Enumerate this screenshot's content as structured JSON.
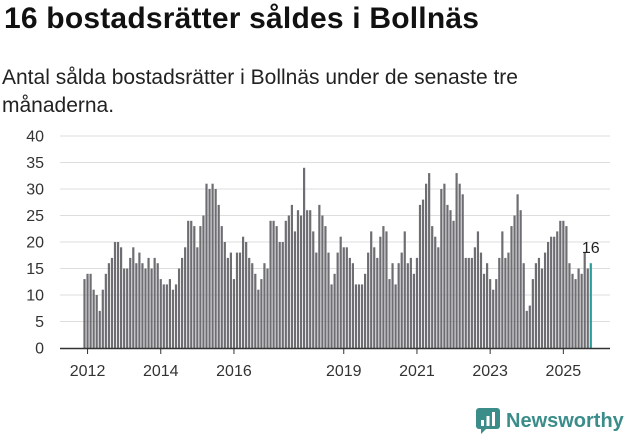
{
  "title": "16 bostadsrätter såldes i Bollnäs",
  "subtitle": "Antal sålda bostadsrätter i Bollnäs under de senaste tre månaderna.",
  "brand": {
    "name": "Newsworthy",
    "icon": "newsworthy-chart-icon"
  },
  "colors": {
    "bar": "#6e6d72",
    "highlight": "#2a9d99",
    "grid": "#dddddd",
    "axis": "#333333",
    "brand": "#3b8d8a"
  },
  "chart_data": {
    "type": "bar",
    "title": "16 bostadsrätter såldes i Bollnäs",
    "xlabel": "",
    "ylabel": "",
    "ylim": [
      0,
      40
    ],
    "yticks": [
      "0",
      "5",
      "10",
      "15",
      "20",
      "25",
      "30",
      "35",
      "40"
    ],
    "grid": true,
    "start": "2011-12",
    "xticks": [
      {
        "label": "2012",
        "index": 1
      },
      {
        "label": "2014",
        "index": 25
      },
      {
        "label": "2016",
        "index": 49
      },
      {
        "label": "2019",
        "index": 85
      },
      {
        "label": "2021",
        "index": 109
      },
      {
        "label": "2023",
        "index": 133
      },
      {
        "label": "2025",
        "index": 157
      }
    ],
    "values": [
      13,
      14,
      14,
      11,
      10,
      7,
      11,
      14,
      16,
      17,
      20,
      20,
      19,
      15,
      15,
      17,
      19,
      16,
      18,
      16,
      15,
      17,
      15,
      17,
      16,
      13,
      12,
      12,
      13,
      11,
      12,
      15,
      17,
      19,
      24,
      24,
      23,
      19,
      23,
      25,
      31,
      30,
      31,
      30,
      27,
      23,
      20,
      17,
      18,
      13,
      18,
      18,
      21,
      20,
      17,
      16,
      14,
      11,
      13,
      16,
      15,
      24,
      24,
      23,
      20,
      20,
      24,
      25,
      27,
      22,
      26,
      25,
      34,
      26,
      26,
      22,
      18,
      27,
      25,
      23,
      18,
      12,
      14,
      18,
      21,
      19,
      19,
      17,
      16,
      12,
      12,
      12,
      14,
      18,
      22,
      19,
      17,
      21,
      23,
      22,
      13,
      16,
      12,
      16,
      18,
      22,
      16,
      17,
      14,
      17,
      27,
      28,
      31,
      33,
      23,
      21,
      19,
      30,
      31,
      27,
      26,
      24,
      33,
      31,
      29,
      17,
      17,
      17,
      19,
      22,
      18,
      14,
      16,
      13,
      11,
      13,
      17,
      22,
      17,
      18,
      23,
      25,
      29,
      26,
      16,
      7,
      8,
      13,
      16,
      17,
      15,
      18,
      20,
      21,
      21,
      22,
      24,
      24,
      23,
      16,
      14,
      13,
      15,
      14,
      18,
      15,
      16
    ],
    "last_value_label": "16"
  }
}
